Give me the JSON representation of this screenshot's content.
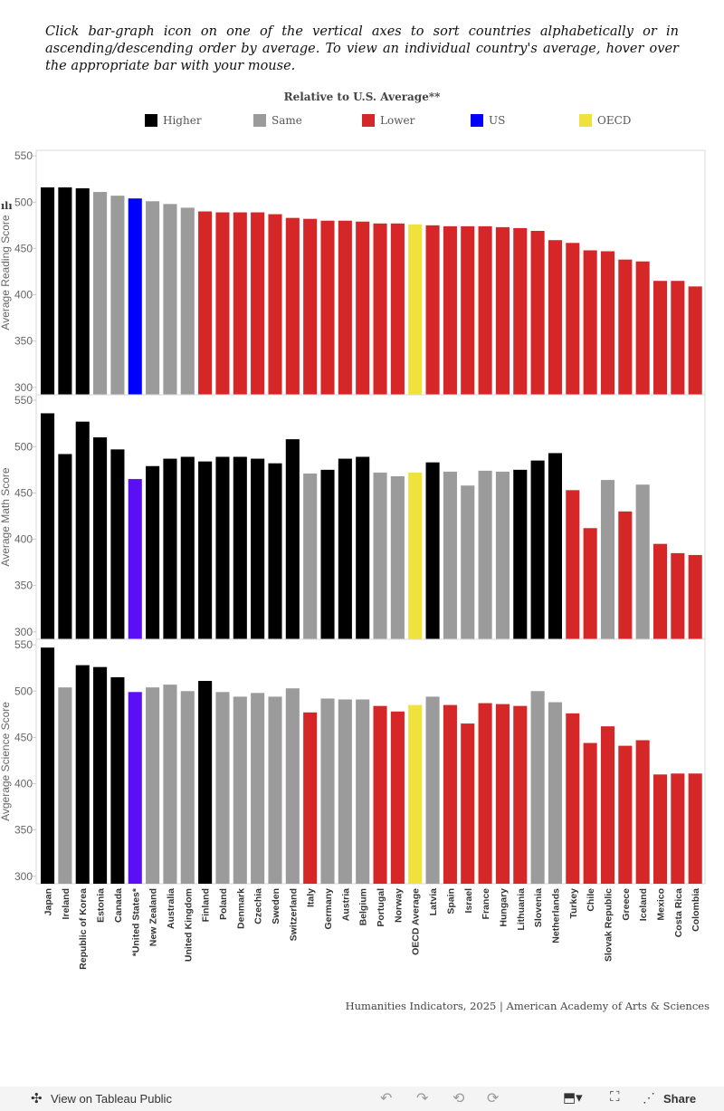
{
  "intro": "Click bar-graph icon on one of the vertical axes to sort countries alphabetically or in ascending/descending order by average. To view an individual country's average, hover over the appropriate bar with your mouse.",
  "legend": {
    "title": "Relative to U.S. Average**",
    "items": [
      {
        "label": "Higher",
        "color": "#000000"
      },
      {
        "label": "Same",
        "color": "#9b9b9b"
      },
      {
        "label": "Lower",
        "color": "#d62728"
      },
      {
        "label": "US",
        "color": "#0000ff"
      },
      {
        "label": "OECD",
        "color": "#efe23c"
      }
    ]
  },
  "credit": "Humanities Indicators, 2025 | American Academy of Arts & Sciences",
  "toolbar": {
    "view": "View on Tableau Public",
    "share": "Share"
  },
  "chart_data": {
    "type": "bar",
    "categories": [
      "Japan",
      "Ireland",
      "Republic of Korea",
      "Estonia",
      "Canada",
      "*United States*",
      "New Zealand",
      "Australia",
      "United Kingdom",
      "Finland",
      "Poland",
      "Denmark",
      "Czechia",
      "Sweden",
      "Switzerland",
      "Italy",
      "Germany",
      "Austria",
      "Belgium",
      "Portugal",
      "Norway",
      "OECD Average",
      "Latvia",
      "Spain",
      "Israel",
      "France",
      "Hungary",
      "Lithuania",
      "Slovenia",
      "Netherlands",
      "Turkey",
      "Chile",
      "Slovak Republic",
      "Greece",
      "Iceland",
      "Mexico",
      "Costa Rica",
      "Colombia"
    ],
    "ylim": [
      300,
      550
    ],
    "yticks": [
      300,
      350,
      400,
      450,
      500,
      550
    ],
    "series": [
      {
        "ylabel": "Average Reading Score",
        "us_color": "#0000ff",
        "values": [
          516,
          516,
          515,
          511,
          507,
          504,
          501,
          498,
          494,
          490,
          489,
          489,
          489,
          487,
          483,
          482,
          480,
          480,
          479,
          477,
          477,
          476,
          475,
          474,
          474,
          474,
          473,
          472,
          469,
          459,
          456,
          448,
          447,
          438,
          436,
          415,
          415,
          409
        ],
        "groups": "HHHSSUSSSLLLLLLLLLLLLOLLLLLLLLLLLLLLLL"
      },
      {
        "ylabel": "Average Math Score",
        "us_color": "#5a0ff5",
        "values": [
          536,
          492,
          527,
          510,
          497,
          465,
          479,
          487,
          489,
          484,
          489,
          489,
          487,
          482,
          508,
          471,
          475,
          487,
          489,
          472,
          468,
          472,
          483,
          473,
          458,
          474,
          473,
          475,
          485,
          493,
          453,
          412,
          464,
          430,
          459,
          395,
          385,
          383
        ],
        "groups": "HHHHHUHHHHHHHHHSHHHSSOHSSSSHHHLLSLSLLL"
      },
      {
        "ylabel": "Avgerage Science Score",
        "us_color": "#5a0ff5",
        "values": [
          547,
          504,
          528,
          526,
          515,
          499,
          504,
          507,
          500,
          511,
          499,
          494,
          498,
          494,
          503,
          477,
          492,
          491,
          491,
          484,
          478,
          485,
          494,
          485,
          465,
          487,
          486,
          484,
          500,
          488,
          476,
          444,
          462,
          441,
          447,
          410,
          411,
          411
        ],
        "groups": "HSHHHUSSSHSSSSSLSSSLLOSLLLLLSSLLLLLLLL"
      }
    ]
  }
}
